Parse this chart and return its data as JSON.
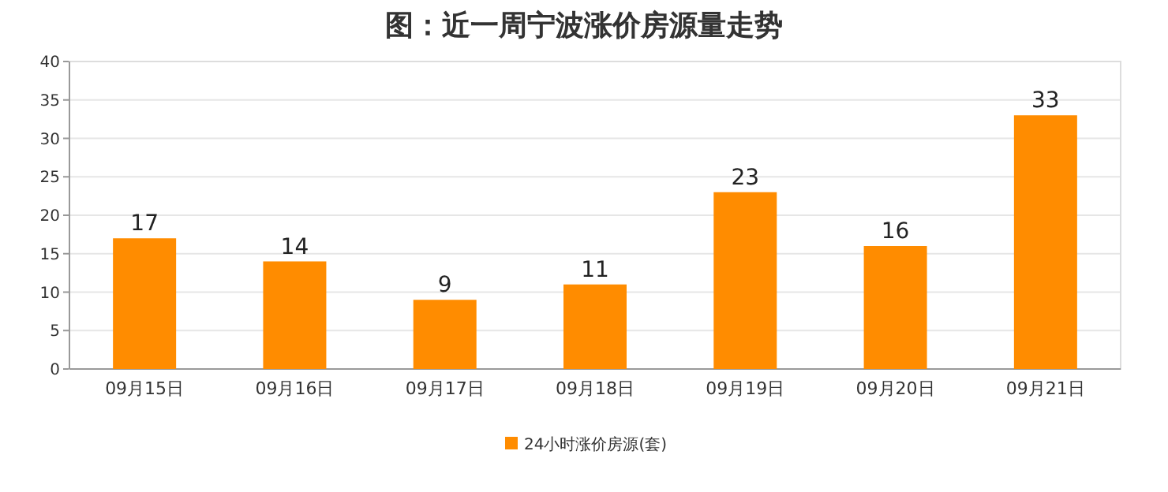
{
  "chart_data": {
    "type": "bar",
    "title": "图：近一周宁波涨价房源量走势",
    "categories": [
      "09月15日",
      "09月16日",
      "09月17日",
      "09月18日",
      "09月19日",
      "09月20日",
      "09月21日"
    ],
    "series": [
      {
        "name": "24小时涨价房源(套)",
        "color": "#ff8c00",
        "values": [
          17,
          14,
          9,
          11,
          23,
          16,
          33
        ]
      }
    ],
    "ylim": [
      0,
      40
    ],
    "yticks": [
      0,
      5,
      10,
      15,
      20,
      25,
      30,
      35,
      40
    ],
    "grid": "y",
    "legend": "bottom",
    "data_labels": true
  }
}
